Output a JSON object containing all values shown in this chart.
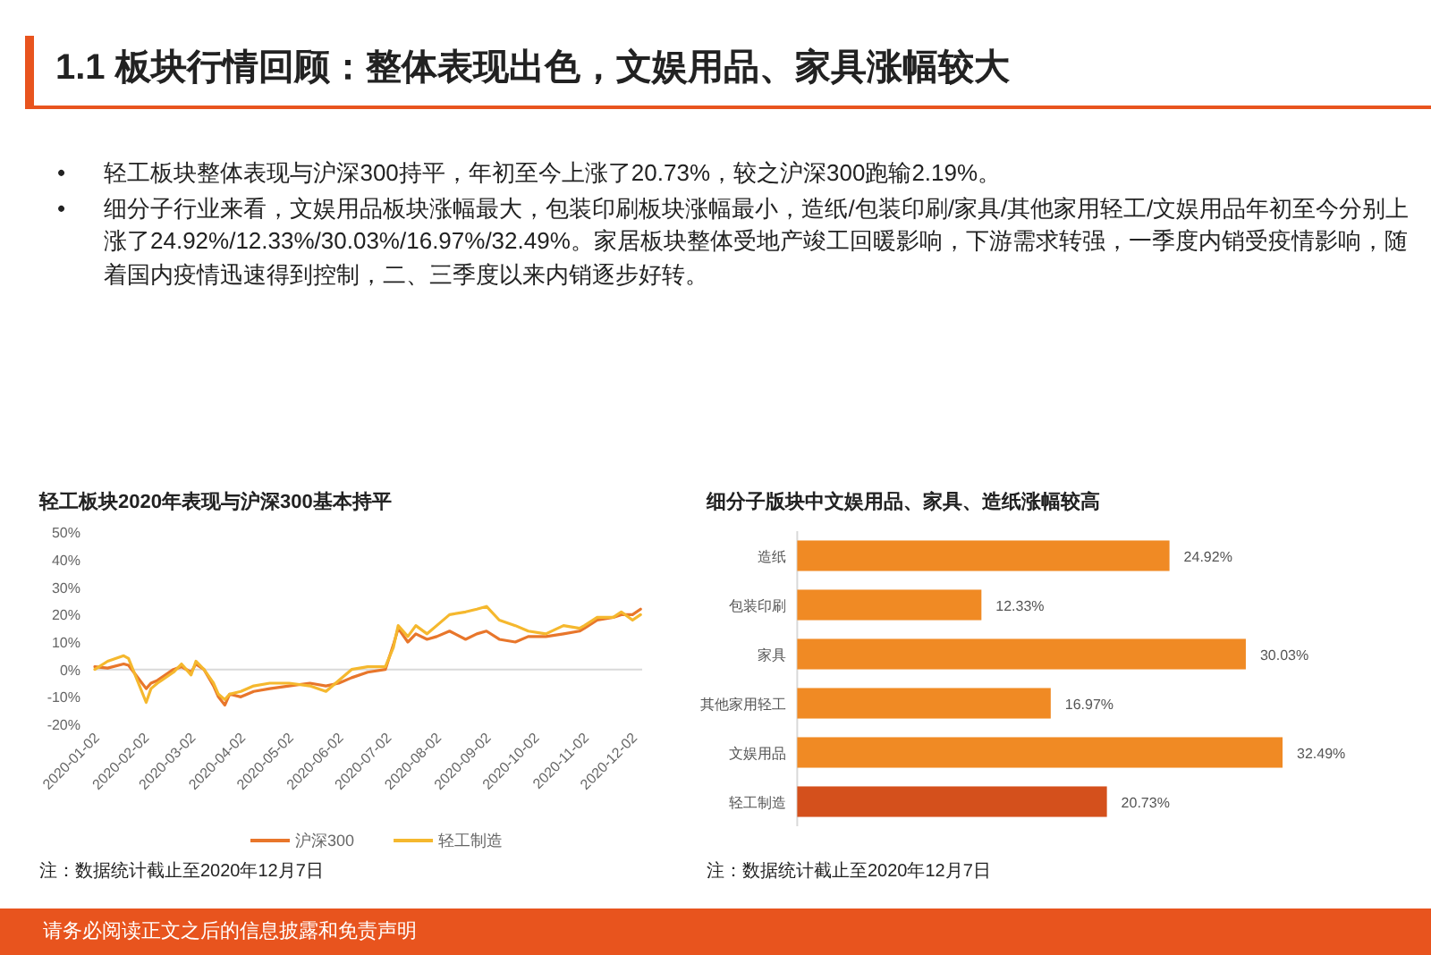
{
  "chart_data": [
    {
      "type": "other",
      "title": "1.1 板块行情回顾：整体表现出色，文娱用品、家具涨幅较大",
      "annotations": [
        "•      轻工板块整体表现与沪深300持平，年初至今上涨了20.73%，较之沪深300跑输2.19%。",
        "•      细分子行业来看，文娱用品板块涨幅最大，包装印刷板块涨幅最小，造纸/包装印刷/家具/其他家用轻工/文娱用品年初至今分别上涨了24.92%/12.33%/30.03%/16.97%/32.49%。家居板块整体受地产竣工回暖影响，下游需求转强，一季度内销受疫情影响，随着国内疫情迅速得到控制，二、三季度以来内销逐步好转。",
        "请务必阅读正文之后的信息披露和免责声明"
      ]
    },
    {
      "type": "line",
      "title": "轻工板块2020年表现与沪深300基本持平",
      "legend": "bottom",
      "annotations": [
        "注：数据统计截止至2020年12月7日"
      ],
      "xlim": [
        "2020-01-02",
        "2020-12-08"
      ],
      "xticks": [
        "2020-01-02",
        "2020-02-02",
        "2020-03-02",
        "2020-04-02",
        "2020-05-02",
        "2020-06-02",
        "2020-07-02",
        "2020-08-02",
        "2020-09-02",
        "2020-10-02",
        "2020-11-02",
        "2020-12-02"
      ],
      "ylim": [
        -20,
        50
      ],
      "yticks": [
        {
          "value": -20,
          "label": "-20%"
        },
        {
          "value": -10,
          "label": "-10%"
        },
        {
          "value": 0,
          "label": "0%"
        },
        {
          "value": 10,
          "label": "10%"
        },
        {
          "value": 20,
          "label": "20%"
        },
        {
          "value": 30,
          "label": "30%"
        },
        {
          "value": 40,
          "label": "40%"
        },
        {
          "value": 50,
          "label": "50%"
        }
      ],
      "x": [
        "2020-01-02",
        "2020-01-10",
        "2020-01-20",
        "2020-01-23",
        "2020-02-03",
        "2020-02-06",
        "2020-02-10",
        "2020-02-20",
        "2020-02-25",
        "2020-03-02",
        "2020-03-05",
        "2020-03-10",
        "2020-03-16",
        "2020-03-19",
        "2020-03-23",
        "2020-03-26",
        "2020-04-02",
        "2020-04-10",
        "2020-04-20",
        "2020-05-02",
        "2020-05-15",
        "2020-05-25",
        "2020-06-02",
        "2020-06-10",
        "2020-06-20",
        "2020-07-01",
        "2020-07-06",
        "2020-07-09",
        "2020-07-15",
        "2020-07-20",
        "2020-07-27",
        "2020-08-02",
        "2020-08-10",
        "2020-08-20",
        "2020-08-27",
        "2020-09-02",
        "2020-09-10",
        "2020-09-20",
        "2020-09-28",
        "2020-10-09",
        "2020-10-20",
        "2020-10-30",
        "2020-11-02",
        "2020-11-10",
        "2020-11-20",
        "2020-11-25",
        "2020-12-02",
        "2020-12-07"
      ],
      "series": [
        {
          "name": "沪深300",
          "color": "#e8762b",
          "values": [
            1,
            0.5,
            2,
            1.5,
            -7,
            -5,
            -4,
            0,
            1,
            -1,
            2,
            0,
            -6,
            -10,
            -13,
            -9,
            -10,
            -8,
            -7,
            -6,
            -5,
            -6,
            -5,
            -3,
            -1,
            0,
            9,
            15,
            10,
            13,
            11,
            12,
            14,
            11,
            13,
            14,
            11,
            10,
            12,
            12,
            13,
            14,
            15,
            18,
            19,
            20,
            20,
            22
          ]
        },
        {
          "name": "轻工制造",
          "color": "#f5b82e",
          "values": [
            0,
            3,
            5,
            4,
            -12,
            -7,
            -5,
            -1,
            2,
            -2,
            3,
            0,
            -5,
            -9,
            -11,
            -9,
            -8,
            -6,
            -5,
            -5,
            -6,
            -8,
            -4,
            0,
            1,
            1,
            8,
            16,
            12,
            16,
            13,
            16,
            20,
            21,
            22,
            23,
            18,
            16,
            14,
            13,
            16,
            15,
            16,
            19,
            19,
            21,
            18,
            20
          ]
        }
      ]
    },
    {
      "type": "bar",
      "orientation": "horizontal",
      "title": "细分子版块中文娱用品、家具、造纸涨幅较高",
      "annotations": [
        "注：数据统计截止至2020年12月7日"
      ],
      "tick_labels": "y",
      "categories": [
        "造纸",
        "包装印刷",
        "家具",
        "其他家用轻工",
        "文娱用品",
        "轻工制造"
      ],
      "values": [
        24.92,
        12.33,
        30.03,
        16.97,
        32.49,
        20.73
      ],
      "colors": [
        "#f08a24",
        "#f08a24",
        "#f08a24",
        "#f08a24",
        "#f08a24",
        "#d4501c"
      ],
      "value_labels": [
        "24.92%",
        "12.33%",
        "30.03%",
        "16.97%",
        "32.49%",
        "20.73%"
      ]
    }
  ]
}
